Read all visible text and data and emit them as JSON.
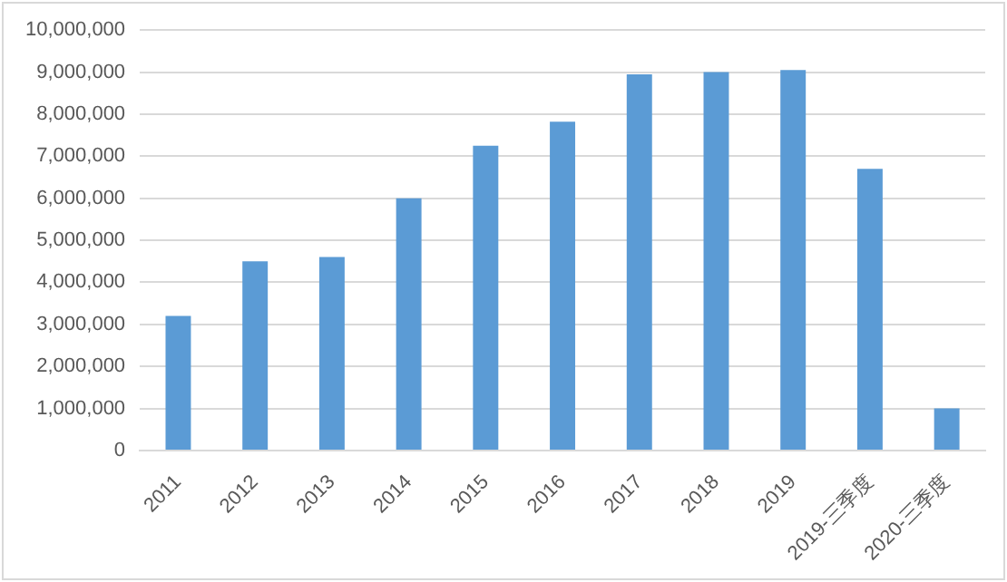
{
  "chart_data": {
    "type": "bar",
    "categories": [
      "2011",
      "2012",
      "2013",
      "2014",
      "2015",
      "2016",
      "2017",
      "2018",
      "2019",
      "2019-三季度",
      "2020-三季度"
    ],
    "values": [
      3200000,
      4500000,
      4600000,
      6000000,
      7250000,
      7820000,
      8950000,
      9000000,
      9050000,
      6700000,
      1000000
    ],
    "color": "#5b9bd5",
    "ylim": [
      0,
      10000000
    ],
    "yticks": [
      0,
      {
        "value": 1000000,
        "label": "1,000,000"
      },
      {
        "value": 2000000,
        "label": "2,000,000"
      },
      {
        "value": 3000000,
        "label": "3,000,000"
      },
      {
        "value": 4000000,
        "label": "4,000,000"
      },
      {
        "value": 5000000,
        "label": "5,000,000"
      },
      {
        "value": 6000000,
        "label": "6,000,000"
      },
      {
        "value": 7000000,
        "label": "7,000,000"
      },
      {
        "value": 8000000,
        "label": "8,000,000"
      },
      {
        "value": 9000000,
        "label": "9,000,000"
      },
      {
        "value": 10000000,
        "label": "10,000,000"
      }
    ],
    "grid": "y",
    "legend": false
  }
}
